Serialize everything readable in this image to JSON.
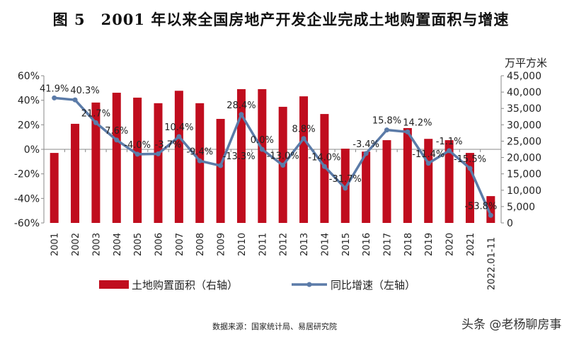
{
  "title": "图 5　2001 年以来全国房地产开发企业完成土地购置面积与增速",
  "source": "数据来源：国家统计局、易居研究院",
  "watermark": "头条 @老杨聊房事",
  "chart_data": {
    "type": "bar+line",
    "categories": [
      "2001",
      "2002",
      "2003",
      "2004",
      "2005",
      "2006",
      "2007",
      "2008",
      "2009",
      "2010",
      "2011",
      "2012",
      "2013",
      "2014",
      "2015",
      "2016",
      "2017",
      "2018",
      "2019",
      "2020",
      "2021",
      "2022.01-11"
    ],
    "series": [
      {
        "name": "土地购置面积（右轴）",
        "type": "bar",
        "axis": "right",
        "color": "#c00d1e",
        "values": [
          21400,
          30300,
          36800,
          39800,
          38300,
          36600,
          40400,
          36600,
          31800,
          40900,
          40900,
          35500,
          38700,
          33300,
          22700,
          21800,
          25300,
          29000,
          25700,
          25300,
          21400,
          8200
        ]
      },
      {
        "name": "同比增速（左轴）",
        "type": "line",
        "axis": "left",
        "color": "#5b7ba8",
        "values": [
          41.9,
          40.3,
          21.7,
          7.6,
          -4.0,
          -3.7,
          10.4,
          -9.4,
          -13.3,
          28.4,
          0.0,
          -13.0,
          8.8,
          -14.0,
          -31.7,
          -3.4,
          15.8,
          14.2,
          -11.4,
          -1.1,
          -15.5,
          -53.8
        ],
        "labels": [
          "41.9%",
          "40.3%",
          "21.7%",
          "7.6%",
          "-4.0%",
          "-3.7%",
          "10.4%",
          "-9.4%",
          "-13.3%",
          "28.4%",
          "0.0%",
          "-13.0%",
          "8.8%",
          "-14.0%",
          "-31.7%",
          "-3.4%",
          "15.8%",
          "14.2%",
          "-11.4%",
          "-1.1%",
          "-15.5%",
          "-53.8%"
        ]
      }
    ],
    "left_axis": {
      "ylim": [
        -60,
        60
      ],
      "ticks": [
        "60%",
        "40%",
        "20%",
        "0%",
        "-20%",
        "-40%",
        "-60%"
      ]
    },
    "right_axis": {
      "unit": "万平方米",
      "ylim": [
        0,
        45000
      ],
      "ticks": [
        "45,000",
        "40,000",
        "35,000",
        "30,000",
        "25,000",
        "20,000",
        "15,000",
        "10,000",
        "5,000",
        "0"
      ]
    },
    "legend_position": "bottom"
  }
}
